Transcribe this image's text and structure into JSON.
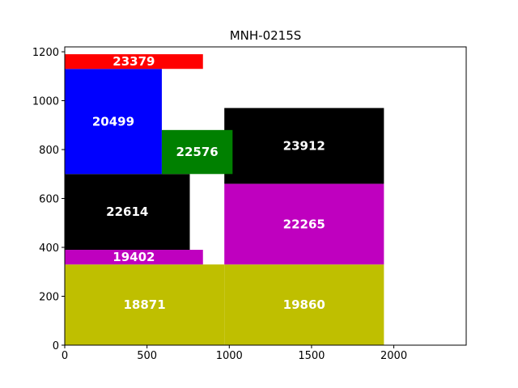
{
  "chart_data": {
    "type": "bar",
    "title": "MNH-0215S",
    "xlabel": "",
    "ylabel": "",
    "xlim": [
      0,
      2440
    ],
    "ylim": [
      0,
      1220
    ],
    "xticks": [
      0,
      500,
      1000,
      1500,
      2000
    ],
    "yticks": [
      0,
      200,
      400,
      600,
      800,
      1000,
      1200
    ],
    "grid": false,
    "rects": [
      {
        "label": "18871",
        "x": 0,
        "y": 0,
        "w": 970,
        "h": 330,
        "color": "#bfbf00"
      },
      {
        "label": "19860",
        "x": 970,
        "y": 0,
        "w": 970,
        "h": 330,
        "color": "#bfbf00"
      },
      {
        "label": "19402",
        "x": 0,
        "y": 330,
        "w": 840,
        "h": 60,
        "color": "#bf00bf"
      },
      {
        "label": "22614",
        "x": 0,
        "y": 390,
        "w": 760,
        "h": 310,
        "color": "#000000"
      },
      {
        "label": "22265",
        "x": 970,
        "y": 330,
        "w": 970,
        "h": 330,
        "color": "#bf00bf"
      },
      {
        "label": "23912",
        "x": 970,
        "y": 660,
        "w": 970,
        "h": 310,
        "color": "#000000"
      },
      {
        "label": "20499",
        "x": 0,
        "y": 700,
        "w": 590,
        "h": 430,
        "color": "#0000ff"
      },
      {
        "label": "22576",
        "x": 590,
        "y": 700,
        "w": 430,
        "h": 180,
        "color": "#008000"
      },
      {
        "label": "23379",
        "x": 0,
        "y": 1130,
        "w": 840,
        "h": 60,
        "color": "#ff0000"
      }
    ]
  }
}
